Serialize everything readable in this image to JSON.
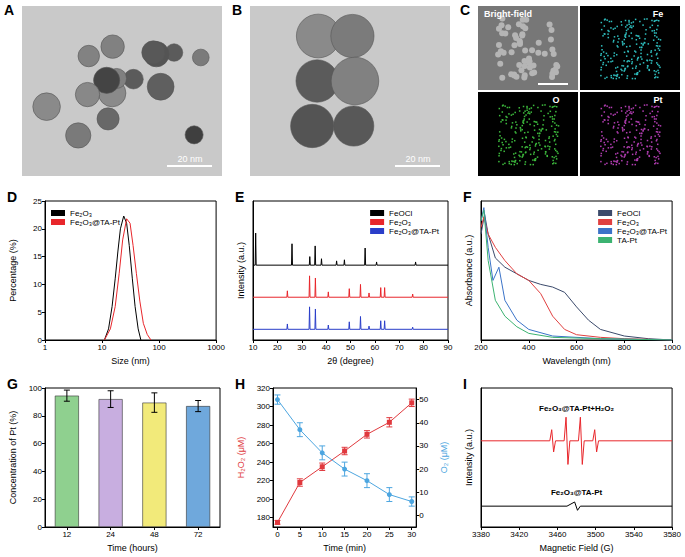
{
  "images": [
    {
      "title": "A",
      "scale_bar": "20 nm"
    },
    {
      "title": "B",
      "scale_bar": "20 nm"
    },
    {
      "title": "C",
      "labels": [
        "Bright-field",
        "Fe",
        "O",
        "Pt"
      ]
    }
  ],
  "chart_data": [
    {
      "title": "D",
      "type": "line",
      "xlabel": "Size (nm)",
      "ylabel": "Percentage (%)",
      "log": "x",
      "xlim": [
        1,
        1000
      ],
      "xticks": [
        1,
        10,
        100,
        1000
      ],
      "ylim": [
        0,
        25
      ],
      "yticks": [
        0,
        5,
        10,
        15,
        20,
        25
      ],
      "legend": "upper left",
      "series": [
        {
          "name": "Fe₂O₃",
          "color": "#000000",
          "x": [
            11,
            13,
            15,
            17,
            19,
            21,
            24,
            27,
            30,
            34,
            38,
            43,
            48
          ],
          "values": [
            0,
            2,
            6,
            11,
            16,
            20,
            22.3,
            21,
            17,
            11,
            6,
            2,
            0
          ]
        },
        {
          "name": "Fe₂O₃@TA-Pt",
          "color": "#e8262b",
          "x": [
            11,
            14,
            17,
            20,
            23,
            27,
            31,
            35,
            40,
            46,
            53,
            62,
            72
          ],
          "values": [
            0,
            2,
            6,
            12,
            18,
            21.8,
            21,
            17,
            12,
            7,
            3,
            1,
            0
          ]
        }
      ]
    },
    {
      "title": "E",
      "type": "line",
      "xlabel": "2θ (degree)",
      "ylabel": "Intensity (a.u.)",
      "xlim": [
        10,
        90
      ],
      "xticks": [
        10,
        20,
        30,
        40,
        50,
        60,
        70,
        80,
        90
      ],
      "ylim": [
        0,
        130
      ],
      "tick_labels": "x",
      "legend": "upper right",
      "series": [
        {
          "name": "FeOCl",
          "color": "#000000",
          "x": [
            10,
            10.9,
            11.1,
            11.3,
            25.8,
            26.0,
            26.2,
            33.1,
            33.3,
            33.5,
            35.3,
            35.5,
            35.7,
            37.9,
            38.1,
            38.3,
            44.1,
            44.3,
            44.5,
            47.3,
            47.5,
            47.7,
            55.8,
            56.0,
            56.2,
            60.5,
            60.7,
            60.9,
            76.5,
            76.7,
            76.9,
            90
          ],
          "values": [
            70,
            70,
            100,
            70,
            70,
            90,
            70,
            70,
            78,
            70,
            70,
            88,
            70,
            70,
            76,
            70,
            70,
            74,
            70,
            70,
            75,
            70,
            70,
            86,
            70,
            70,
            73,
            70,
            70,
            73,
            70,
            70
          ]
        },
        {
          "name": "Fe₂O₃",
          "color": "#e8262b",
          "x": [
            10,
            23.9,
            24.1,
            24.3,
            33.0,
            33.2,
            33.4,
            35.4,
            35.6,
            35.8,
            40.7,
            40.9,
            41.1,
            49.3,
            49.5,
            49.7,
            53.9,
            54.1,
            54.3,
            57.4,
            57.6,
            57.8,
            62.2,
            62.4,
            62.6,
            63.8,
            64.0,
            64.2,
            75.3,
            75.5,
            75.7,
            90
          ],
          "values": [
            40,
            40,
            46,
            40,
            40,
            60,
            40,
            40,
            58,
            40,
            40,
            45,
            40,
            40,
            48,
            40,
            40,
            52,
            40,
            40,
            44,
            40,
            40,
            49,
            40,
            40,
            49,
            40,
            40,
            43,
            40,
            40
          ]
        },
        {
          "name": "Fe₂O₃@TA-Pt",
          "color": "#2a3ec9",
          "x": [
            10,
            23.9,
            24.1,
            24.3,
            33.0,
            33.2,
            33.4,
            35.4,
            35.6,
            35.8,
            40.7,
            40.9,
            41.1,
            49.3,
            49.5,
            49.7,
            53.9,
            54.1,
            54.3,
            57.4,
            57.6,
            57.8,
            62.2,
            62.4,
            62.6,
            63.8,
            64.0,
            64.2,
            75.3,
            75.5,
            75.7,
            90
          ],
          "values": [
            10,
            10,
            15,
            10,
            10,
            31,
            10,
            10,
            29,
            10,
            10,
            14,
            10,
            10,
            17,
            10,
            10,
            22,
            10,
            10,
            13,
            10,
            10,
            18,
            10,
            10,
            18,
            10,
            10,
            12,
            10,
            10
          ]
        }
      ]
    },
    {
      "title": "F",
      "type": "line",
      "xlabel": "Wavelength (nm)",
      "ylabel": "Absorbance (a.u.)",
      "xlim": [
        200,
        1000
      ],
      "xticks": [
        200,
        400,
        600,
        800,
        1000
      ],
      "ylim": [
        0,
        1.05
      ],
      "tick_labels": "x",
      "legend": "upper right",
      "series": [
        {
          "name": "FeOCl",
          "color": "#3b4a6b",
          "x": [
            200,
            215,
            230,
            260,
            300,
            350,
            400,
            450,
            500,
            550,
            600,
            650,
            700,
            800,
            900,
            1000
          ],
          "values": [
            0.8,
            0.95,
            0.8,
            0.62,
            0.55,
            0.5,
            0.45,
            0.42,
            0.4,
            0.36,
            0.25,
            0.15,
            0.08,
            0.03,
            0.01,
            0
          ]
        },
        {
          "name": "Fe₂O₃",
          "color": "#e04040",
          "x": [
            200,
            212,
            230,
            260,
            300,
            350,
            400,
            450,
            500,
            550,
            600,
            700,
            800,
            1000
          ],
          "values": [
            0.85,
            0.93,
            0.8,
            0.7,
            0.6,
            0.5,
            0.45,
            0.35,
            0.18,
            0.08,
            0.04,
            0.02,
            0.01,
            0
          ]
        },
        {
          "name": "Fe₂O₃@TA-Pt",
          "color": "#3b73c8",
          "x": [
            200,
            212,
            230,
            250,
            275,
            300,
            350,
            400,
            500,
            700,
            1000
          ],
          "values": [
            0.9,
            1.0,
            0.7,
            0.45,
            0.55,
            0.3,
            0.15,
            0.08,
            0.03,
            0.01,
            0
          ]
        },
        {
          "name": "TA-Pt",
          "color": "#3cb371",
          "x": [
            200,
            212,
            230,
            260,
            300,
            350,
            400,
            500,
            700,
            1000
          ],
          "values": [
            0.9,
            0.98,
            0.6,
            0.3,
            0.18,
            0.1,
            0.05,
            0.02,
            0.01,
            0
          ]
        }
      ]
    },
    {
      "title": "G",
      "type": "bar",
      "xlabel": "Time (hours)",
      "ylabel": "Concentration of Pt (%)",
      "categories": [
        "12",
        "24",
        "48",
        "72"
      ],
      "values": [
        94.5,
        92,
        89.5,
        87
      ],
      "errors": [
        4,
        6,
        7,
        4
      ],
      "colors": [
        "#8fd08f",
        "#c8aee0",
        "#f2ea7a",
        "#6fa8dc"
      ],
      "ylim": [
        0,
        100
      ],
      "yticks": [
        0,
        20,
        40,
        60,
        80,
        100
      ]
    },
    {
      "title": "H",
      "type": "line",
      "xlabel": "Time (min)",
      "ylabel": "H₂O₂ (μM)",
      "y2label": "O₂ (μM)",
      "xlim": [
        -1,
        31
      ],
      "xticks": [
        0,
        5,
        10,
        15,
        20,
        25,
        30
      ],
      "ylim": [
        170,
        320
      ],
      "yticks": [
        180,
        200,
        220,
        240,
        260,
        280,
        300,
        320
      ],
      "y2lim": [
        -5,
        55
      ],
      "y2ticks": [
        0,
        10,
        20,
        30,
        40,
        50
      ],
      "x": [
        0,
        5,
        10,
        15,
        20,
        25,
        30
      ],
      "series": [
        {
          "color": "#e0393e",
          "marker": "square",
          "values": [
            175,
            218,
            235,
            252,
            270,
            283,
            304
          ],
          "errors": [
            2,
            4,
            4,
            4,
            4,
            5,
            4
          ]
        },
        {
          "color": "#4da6e0",
          "marker": "circle",
          "axis": "y2",
          "values": [
            50,
            37,
            27,
            20,
            15,
            9,
            6
          ],
          "errors": [
            2,
            3,
            3,
            3,
            3,
            3,
            2
          ]
        }
      ]
    },
    {
      "title": "I",
      "type": "line",
      "xlabel": "Magnetic Field (G)",
      "ylabel": "Intensity (a.u.)",
      "xlim": [
        3380,
        3580
      ],
      "xticks": [
        3380,
        3420,
        3460,
        3500,
        3540,
        3580
      ],
      "ylim": [
        0,
        1
      ],
      "tick_labels": "x",
      "series": [
        {
          "name": "Fe₂O₃@TA-Pt+H₂O₂",
          "color": "#e8262b",
          "x": [
            3380,
            3452,
            3454,
            3456,
            3458,
            3467,
            3469,
            3471,
            3473,
            3482,
            3484,
            3486,
            3488,
            3497,
            3499,
            3501,
            3503,
            3580
          ],
          "values": [
            0.62,
            0.62,
            0.7,
            0.54,
            0.62,
            0.62,
            0.79,
            0.45,
            0.62,
            0.62,
            0.79,
            0.45,
            0.62,
            0.62,
            0.7,
            0.54,
            0.62,
            0.62
          ]
        },
        {
          "name": "Fe₂O₃@TA-Pt",
          "color": "#000000",
          "x": [
            3380,
            3470,
            3478,
            3481,
            3484,
            3580
          ],
          "values": [
            0.15,
            0.15,
            0.18,
            0.12,
            0.15,
            0.15
          ]
        }
      ]
    }
  ]
}
